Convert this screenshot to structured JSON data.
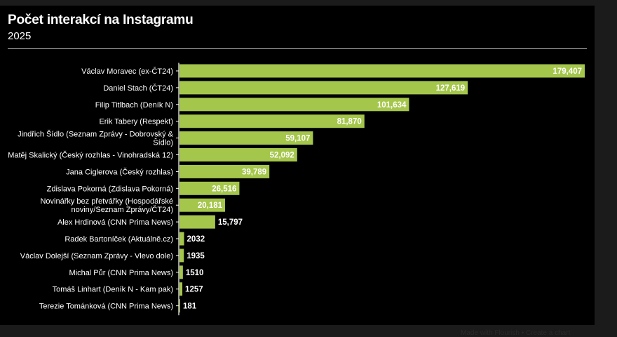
{
  "chart_data": {
    "type": "bar",
    "orientation": "horizontal",
    "title": "Počet interakcí na Instagramu",
    "subtitle": "2025",
    "categories": [
      [
        "Václav Moravec (ex-ČT24)"
      ],
      [
        "Daniel Stach (ČT24)"
      ],
      [
        "Filip Titlbach (Deník N)"
      ],
      [
        "Erik Tabery (Respekt)"
      ],
      [
        "Jindřich Šídlo (Seznam Zprávy - Dobrovský &",
        "Šídlo)"
      ],
      [
        "Matěj Skalický (Český rozhlas - Vinohradská 12)"
      ],
      [
        "Jana Ciglerova (Český rozhlas)"
      ],
      [
        "Zdislava Pokorná (Zdislava Pokorná)"
      ],
      [
        "Novinářky bez přetvářky (Hospodářské",
        "noviny/Seznam Zprávy/ČT24)"
      ],
      [
        "Alex Hrdinová (CNN Prima News)"
      ],
      [
        "Radek Bartoníček (Aktuálně.cz)"
      ],
      [
        "Václav Dolejší (Seznam Zprávy - Vlevo dole)"
      ],
      [
        "Michal Půr (CNN Prima News)"
      ],
      [
        "Tomáš Linhart (Deník N - Kam pak)"
      ],
      [
        "Terezie Tománková (CNN Prima News)"
      ]
    ],
    "values": [
      179407,
      127619,
      101634,
      81870,
      59107,
      52092,
      39789,
      26516,
      20181,
      15797,
      2032,
      1935,
      1510,
      1257,
      181
    ],
    "value_labels": [
      "179,407",
      "127,619",
      "101,634",
      "81,870",
      "59,107",
      "52,092",
      "39,789",
      "26,516",
      "20,181",
      "15,797",
      "2032",
      "1935",
      "1510",
      "1257",
      "181"
    ],
    "xlim": [
      0,
      179407
    ],
    "xlabel": "",
    "ylabel": "",
    "grid": false,
    "legend": "none"
  },
  "colors": {
    "bar": "#a4c64b",
    "background": "#000000",
    "text": "#ffffff"
  },
  "footer": {
    "credit": "Made with Flourish • Create a chart"
  }
}
